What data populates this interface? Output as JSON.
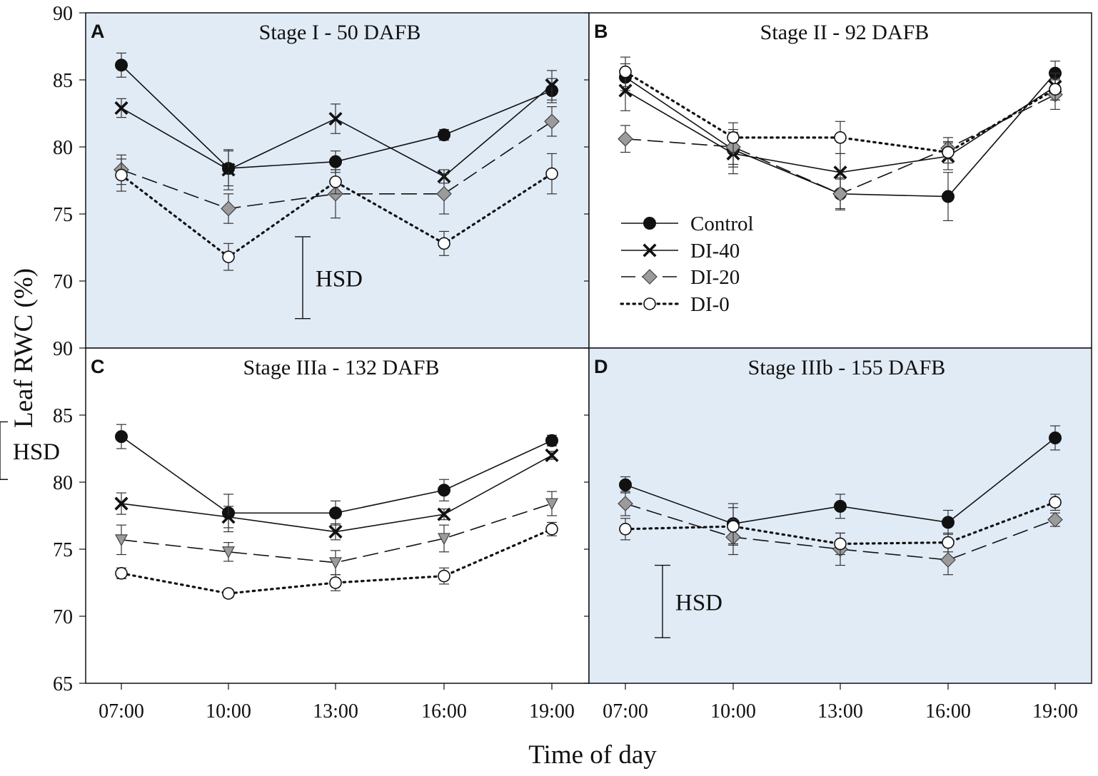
{
  "figure": {
    "ylabel": "Leaf RWC (%)",
    "xlabel": "Time of day",
    "colors": {
      "shaded": "#e1ebf6",
      "gray_marker": "#9b9b9b",
      "line": "#111111"
    }
  },
  "legend": {
    "items": [
      {
        "label": "Control",
        "marker": "filled-circle",
        "dash": "solid"
      },
      {
        "label": "DI-40",
        "marker": "x",
        "dash": "solid"
      },
      {
        "label": "DI-20",
        "marker": "gray-diamond",
        "dash": "long-dash"
      },
      {
        "label": "DI-0",
        "marker": "open-circle",
        "dash": "dotted"
      }
    ]
  },
  "chart_data": [
    {
      "type": "line",
      "letter": "A",
      "title": "Stage I - 50 DAFB",
      "shaded": true,
      "x": [
        "07:00",
        "10:00",
        "13:00",
        "16:00",
        "19:00"
      ],
      "ylim": [
        65,
        90
      ],
      "yticks": [
        70,
        75,
        80,
        85,
        90
      ],
      "hsd": {
        "label": "HSD",
        "low": 67.2,
        "high": 73.3
      },
      "series": [
        {
          "name": "Control",
          "marker": "filled-circle",
          "dash": "solid",
          "values": [
            86.1,
            78.4,
            78.9,
            80.9,
            84.2
          ],
          "err": [
            0.9,
            1.3,
            0.8,
            0.4,
            0.9
          ]
        },
        {
          "name": "DI-40",
          "marker": "x",
          "dash": "solid",
          "values": [
            82.9,
            78.3,
            82.1,
            77.8,
            84.6
          ],
          "err": [
            0.7,
            1.5,
            1.1,
            0.5,
            1.1
          ]
        },
        {
          "name": "DI-20",
          "marker": "gray-diamond",
          "dash": "long-dash",
          "values": [
            78.3,
            75.4,
            76.5,
            76.5,
            81.9
          ],
          "err": [
            1.1,
            1.1,
            1.8,
            1.5,
            1.1
          ]
        },
        {
          "name": "DI-0",
          "marker": "open-circle",
          "dash": "dotted",
          "values": [
            77.9,
            71.8,
            77.4,
            72.8,
            78.0
          ],
          "err": [
            1.2,
            1.0,
            0.9,
            0.9,
            1.5
          ]
        }
      ]
    },
    {
      "type": "line",
      "letter": "B",
      "title": "Stage II - 92 DAFB",
      "shaded": false,
      "x": [
        "07:00",
        "10:00",
        "13:00",
        "16:00",
        "19:00"
      ],
      "ylim": [
        65,
        90
      ],
      "yticks": [
        70,
        75,
        80,
        85,
        90
      ],
      "hsd": null,
      "series": [
        {
          "name": "Control",
          "marker": "filled-circle",
          "dash": "solid",
          "values": [
            85.2,
            79.8,
            76.5,
            76.3,
            85.5
          ],
          "err": [
            1.0,
            1.3,
            1.2,
            1.8,
            0.9
          ]
        },
        {
          "name": "DI-40",
          "marker": "x",
          "dash": "solid",
          "values": [
            84.2,
            79.5,
            78.1,
            79.3,
            84.5
          ],
          "err": [
            1.5,
            1.5,
            1.4,
            1.0,
            1.0
          ]
        },
        {
          "name": "DI-20",
          "marker": "gray-diamond",
          "dash": "long-dash",
          "values": [
            80.6,
            80.0,
            76.5,
            79.9,
            83.9
          ],
          "err": [
            1.0,
            1.3,
            1.1,
            0.8,
            1.1
          ]
        },
        {
          "name": "DI-0",
          "marker": "open-circle",
          "dash": "dotted",
          "values": [
            85.6,
            80.7,
            80.7,
            79.6,
            84.3
          ],
          "err": [
            1.1,
            1.1,
            1.2,
            0.8,
            0.8
          ]
        }
      ]
    },
    {
      "type": "line",
      "letter": "C",
      "title": "Stage IIIa - 132 DAFB",
      "shaded": false,
      "x": [
        "07:00",
        "10:00",
        "13:00",
        "16:00",
        "19:00"
      ],
      "ylim": [
        65,
        90
      ],
      "yticks": [
        65,
        70,
        75,
        80,
        85,
        90
      ],
      "hsd": {
        "label": "HSD",
        "low": 80.2,
        "high": 84.5
      },
      "series": [
        {
          "name": "Control",
          "marker": "filled-circle",
          "dash": "solid",
          "values": [
            83.4,
            77.7,
            77.7,
            79.4,
            83.1
          ],
          "err": [
            0.9,
            1.4,
            0.9,
            0.8,
            0.4
          ]
        },
        {
          "name": "DI-40",
          "marker": "x",
          "dash": "solid",
          "values": [
            78.4,
            77.4,
            76.3,
            77.6,
            82.0
          ],
          "err": [
            0.8,
            0.8,
            0.6,
            0.4,
            0.3
          ]
        },
        {
          "name": "DI-20",
          "marker": "gray-triangle",
          "dash": "long-dash",
          "values": [
            75.7,
            74.8,
            74.0,
            75.8,
            78.4
          ],
          "err": [
            1.1,
            0.7,
            0.9,
            1.0,
            0.9
          ]
        },
        {
          "name": "DI-0",
          "marker": "open-circle",
          "dash": "dotted",
          "values": [
            73.2,
            71.7,
            72.5,
            73.0,
            76.5
          ],
          "err": [
            0.4,
            0.3,
            0.6,
            0.6,
            0.5
          ]
        }
      ]
    },
    {
      "type": "line",
      "letter": "D",
      "title": "Stage IIIb - 155 DAFB",
      "shaded": true,
      "x": [
        "07:00",
        "10:00",
        "13:00",
        "16:00",
        "19:00"
      ],
      "ylim": [
        65,
        90
      ],
      "yticks": [
        65,
        70,
        75,
        80,
        85,
        90
      ],
      "hsd": {
        "label": "HSD",
        "low": 68.4,
        "high": 73.8
      },
      "series": [
        {
          "name": "Control",
          "marker": "filled-circle",
          "dash": "solid",
          "values": [
            79.8,
            76.9,
            78.2,
            77.0,
            83.3
          ],
          "err": [
            0.6,
            1.5,
            0.9,
            0.9,
            0.9
          ]
        },
        {
          "name": "DI-20",
          "marker": "gray-diamond",
          "dash": "long-dash",
          "values": [
            78.4,
            75.9,
            75.0,
            74.2,
            77.2
          ],
          "err": [
            0.9,
            1.3,
            1.2,
            1.1,
            0.5
          ]
        },
        {
          "name": "DI-0",
          "marker": "open-circle",
          "dash": "dotted",
          "values": [
            76.5,
            76.7,
            75.4,
            75.5,
            78.5
          ],
          "err": [
            0.8,
            1.4,
            0.8,
            0.7,
            0.6
          ]
        }
      ]
    }
  ]
}
